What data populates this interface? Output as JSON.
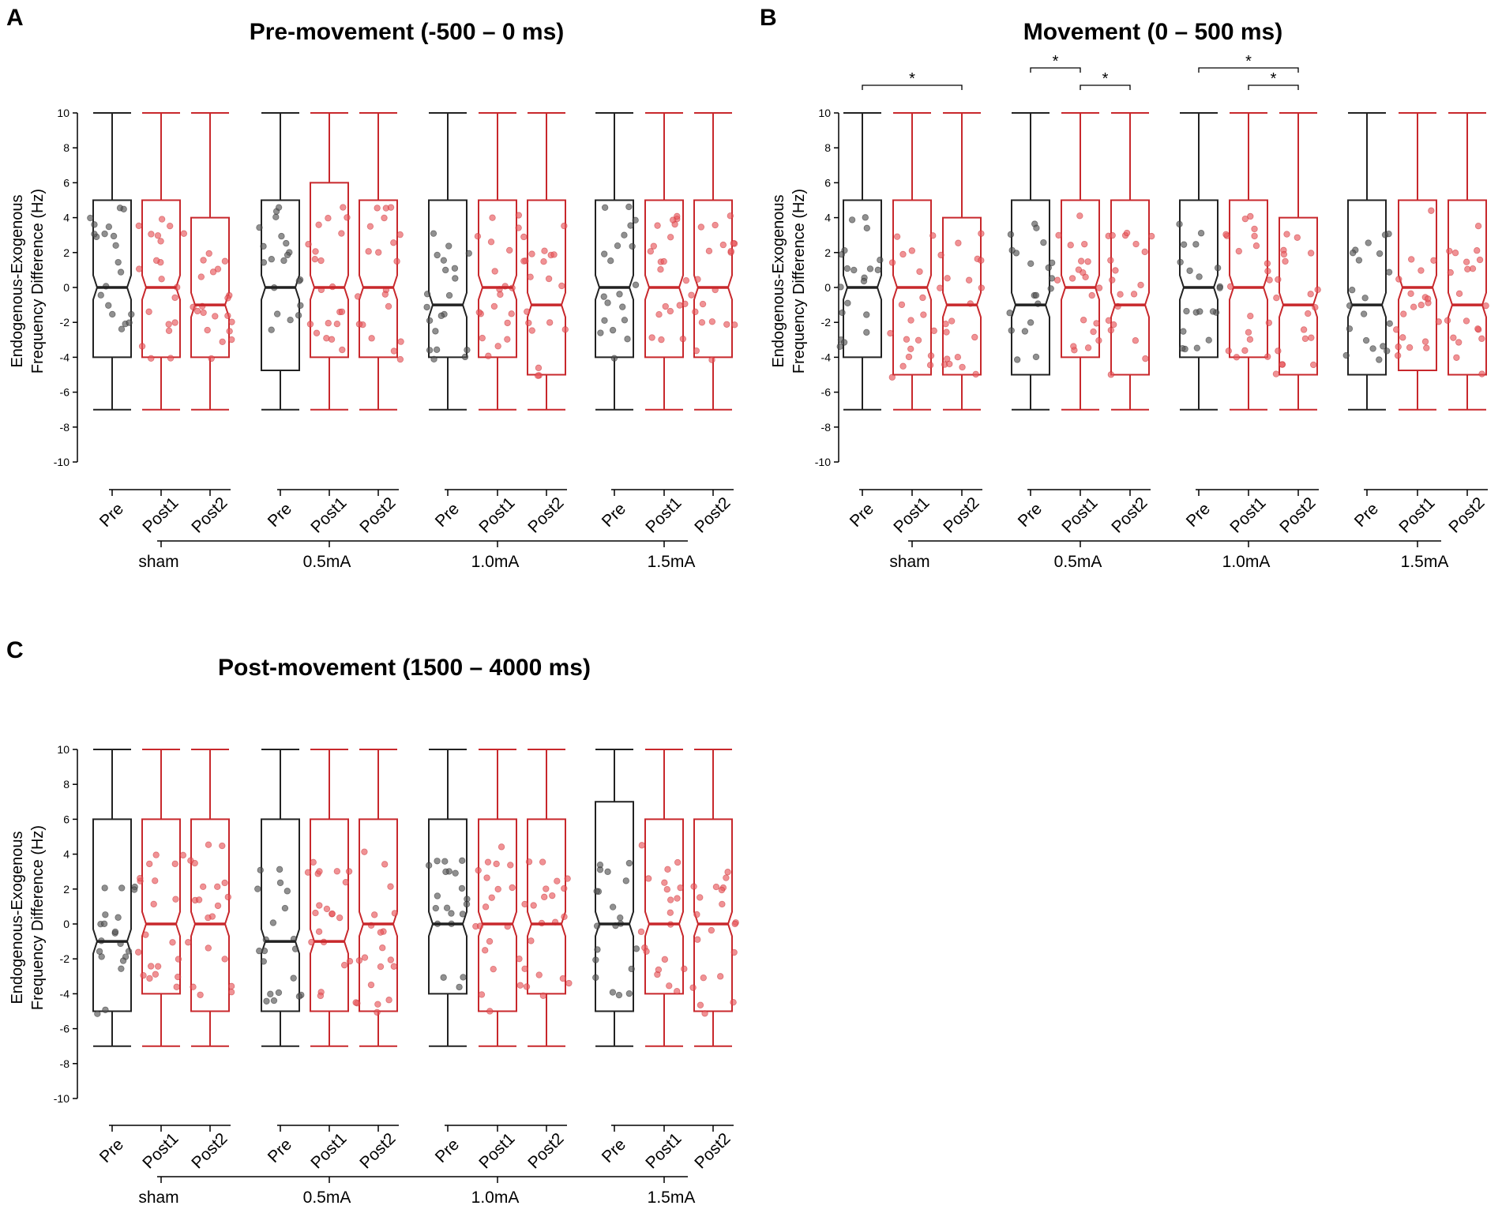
{
  "figure": {
    "colors": {
      "pre": "#222222",
      "post": "#c8282c",
      "pre_dot": "#555555",
      "post_dot": "#e8585c"
    }
  },
  "chart_data": [
    {
      "id": "A",
      "panel_label": "A",
      "type": "box",
      "title": "Pre-movement (-500 – 0 ms)",
      "ylabel": [
        "Endogenous-Exogenous",
        "Frequency Difference (Hz)"
      ],
      "ylim": [
        -10,
        10
      ],
      "yticks": [
        -10,
        -8,
        -6,
        -4,
        -2,
        0,
        2,
        4,
        6,
        8,
        10
      ],
      "categories": [
        "Pre",
        "Post1",
        "Post2"
      ],
      "groups": [
        "sham",
        "0.5mA",
        "1.0mA",
        "1.5mA"
      ],
      "boxes": [
        [
          {
            "min": -7,
            "q1": -4,
            "median": 0,
            "q3": 5,
            "max": 10
          },
          {
            "min": -7,
            "q1": -4,
            "median": 0,
            "q3": 5,
            "max": 10
          },
          {
            "min": -7,
            "q1": -4,
            "median": -1,
            "q3": 4,
            "max": 10
          }
        ],
        [
          {
            "min": -7,
            "q1": -4.75,
            "median": 0,
            "q3": 5,
            "max": 10
          },
          {
            "min": -7,
            "q1": -4,
            "median": 0,
            "q3": 6,
            "max": 10
          },
          {
            "min": -7,
            "q1": -4,
            "median": 0,
            "q3": 5,
            "max": 10
          }
        ],
        [
          {
            "min": -7,
            "q1": -4,
            "median": -1,
            "q3": 5,
            "max": 10
          },
          {
            "min": -7,
            "q1": -4,
            "median": 0,
            "q3": 5,
            "max": 10
          },
          {
            "min": -7,
            "q1": -5,
            "median": -1,
            "q3": 5,
            "max": 10
          }
        ],
        [
          {
            "min": -7,
            "q1": -4,
            "median": 0,
            "q3": 5,
            "max": 10
          },
          {
            "min": -7,
            "q1": -4,
            "median": 0,
            "q3": 5,
            "max": 10
          },
          {
            "min": -7,
            "q1": -4,
            "median": 0,
            "q3": 5,
            "max": 10
          }
        ]
      ],
      "significance": []
    },
    {
      "id": "B",
      "panel_label": "B",
      "type": "box",
      "title": "Movement (0 – 500 ms)",
      "ylabel": [
        "Endogenous-Exogenous",
        "Frequency Difference (Hz)"
      ],
      "ylim": [
        -10,
        10
      ],
      "yticks": [
        -10,
        -8,
        -6,
        -4,
        -2,
        0,
        2,
        4,
        6,
        8,
        10
      ],
      "categories": [
        "Pre",
        "Post1",
        "Post2"
      ],
      "groups": [
        "sham",
        "0.5mA",
        "1.0mA",
        "1.5mA"
      ],
      "boxes": [
        [
          {
            "min": -7,
            "q1": -4,
            "median": 0,
            "q3": 5,
            "max": 10
          },
          {
            "min": -7,
            "q1": -5,
            "median": 0,
            "q3": 5,
            "max": 10
          },
          {
            "min": -7,
            "q1": -5,
            "median": -1,
            "q3": 4,
            "max": 10
          }
        ],
        [
          {
            "min": -7,
            "q1": -5,
            "median": -1,
            "q3": 5,
            "max": 10
          },
          {
            "min": -7,
            "q1": -4,
            "median": 0,
            "q3": 5,
            "max": 10
          },
          {
            "min": -7,
            "q1": -5,
            "median": -1,
            "q3": 5,
            "max": 10
          }
        ],
        [
          {
            "min": -7,
            "q1": -4,
            "median": 0,
            "q3": 5,
            "max": 10
          },
          {
            "min": -7,
            "q1": -4,
            "median": 0,
            "q3": 5,
            "max": 10
          },
          {
            "min": -7,
            "q1": -5,
            "median": -1,
            "q3": 4,
            "max": 10
          }
        ],
        [
          {
            "min": -7,
            "q1": -5,
            "median": -1,
            "q3": 5,
            "max": 10
          },
          {
            "min": -7,
            "q1": -4.75,
            "median": 0,
            "q3": 5,
            "max": 10
          },
          {
            "min": -7,
            "q1": -5,
            "median": -1,
            "q3": 5,
            "max": 10
          }
        ]
      ],
      "significance": [
        {
          "group": 0,
          "from": 0,
          "to": 2,
          "level": 0,
          "label": "*"
        },
        {
          "group": 1,
          "from": 0,
          "to": 1,
          "level": 1,
          "label": "*"
        },
        {
          "group": 1,
          "from": 1,
          "to": 2,
          "level": 0,
          "label": "*"
        },
        {
          "group": 2,
          "from": 0,
          "to": 2,
          "level": 1,
          "label": "*"
        },
        {
          "group": 2,
          "from": 1,
          "to": 2,
          "level": 0,
          "label": "*"
        }
      ]
    },
    {
      "id": "C",
      "panel_label": "C",
      "type": "box",
      "title": "Post-movement (1500 – 4000 ms)",
      "ylabel": [
        "Endogenous-Exogenous",
        "Frequency Difference (Hz)"
      ],
      "ylim": [
        -10,
        10
      ],
      "yticks": [
        -10,
        -8,
        -6,
        -4,
        -2,
        0,
        2,
        4,
        6,
        8,
        10
      ],
      "categories": [
        "Pre",
        "Post1",
        "Post2"
      ],
      "groups": [
        "sham",
        "0.5mA",
        "1.0mA",
        "1.5mA"
      ],
      "boxes": [
        [
          {
            "min": -7,
            "q1": -5,
            "median": -1,
            "q3": 6,
            "max": 10
          },
          {
            "min": -7,
            "q1": -4,
            "median": 0,
            "q3": 6,
            "max": 10
          },
          {
            "min": -7,
            "q1": -5,
            "median": 0,
            "q3": 6,
            "max": 10
          }
        ],
        [
          {
            "min": -7,
            "q1": -5,
            "median": -1,
            "q3": 6,
            "max": 10
          },
          {
            "min": -7,
            "q1": -5,
            "median": -1,
            "q3": 6,
            "max": 10
          },
          {
            "min": -7,
            "q1": -5,
            "median": 0,
            "q3": 6,
            "max": 10
          }
        ],
        [
          {
            "min": -7,
            "q1": -4,
            "median": 0,
            "q3": 6,
            "max": 10
          },
          {
            "min": -7,
            "q1": -5,
            "median": 0,
            "q3": 6,
            "max": 10
          },
          {
            "min": -7,
            "q1": -4,
            "median": 0,
            "q3": 6,
            "max": 10
          }
        ],
        [
          {
            "min": -7,
            "q1": -5,
            "median": 0,
            "q3": 7,
            "max": 10
          },
          {
            "min": -7,
            "q1": -4,
            "median": 0,
            "q3": 6,
            "max": 10
          },
          {
            "min": -7,
            "q1": -5,
            "median": 0,
            "q3": 6,
            "max": 10
          }
        ]
      ],
      "significance": []
    }
  ]
}
